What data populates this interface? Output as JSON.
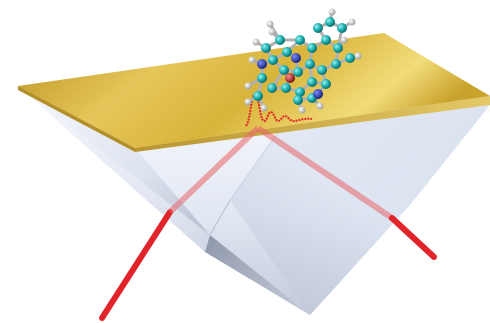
{
  "scene": {
    "subject": "prism-with-gold-film",
    "elements": [
      "prism",
      "gold-film",
      "light-beam",
      "molecule",
      "spectrum-trace"
    ],
    "colors": {
      "background": "#ffffff",
      "gold": "#d8b43a",
      "gold_dark": "#b8901e",
      "prism_light": "#eef2fa",
      "prism_mid": "#cbd4e6",
      "prism_dark": "#9aa4b8",
      "beam": "#e0242a",
      "atom_carbon": "#1fb5b5",
      "atom_hydrogen": "#e8e8e8",
      "atom_nitrogen": "#2a3fb0",
      "atom_oxygen": "#c0282a",
      "bond": "#b0b0b0"
    }
  }
}
